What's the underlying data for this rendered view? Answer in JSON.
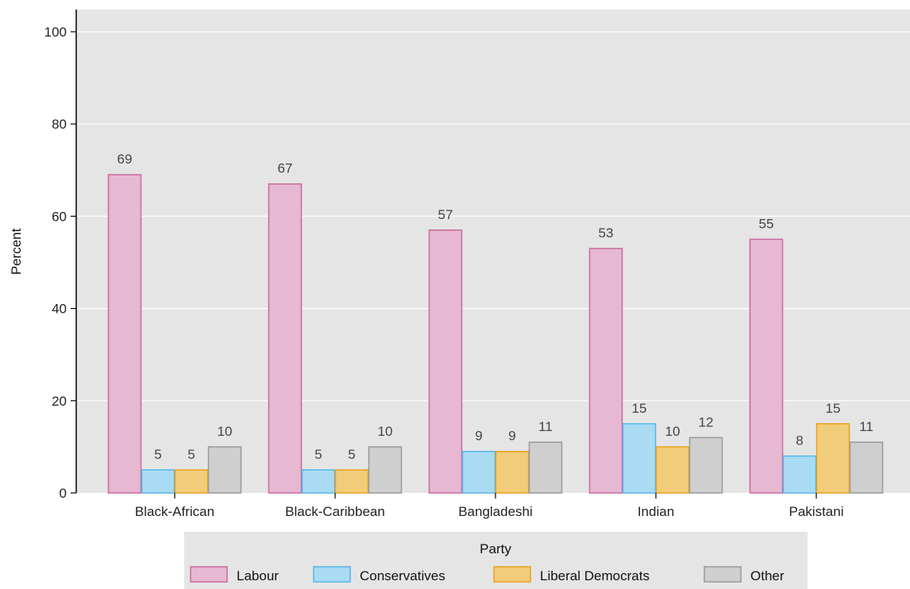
{
  "chart_data": {
    "type": "bar",
    "title": "",
    "xlabel": "",
    "ylabel": "Percent",
    "ylim": [
      0,
      100
    ],
    "yticks": [
      0,
      20,
      40,
      60,
      80,
      100
    ],
    "grid": true,
    "categories": [
      "Black-African",
      "Black-Caribbean",
      "Bangladeshi",
      "Indian",
      "Pakistani"
    ],
    "series": [
      {
        "name": "Labour",
        "values": [
          69,
          67,
          57,
          53,
          55
        ],
        "fill": "#e6b8d2",
        "stroke": "#c8699b"
      },
      {
        "name": "Conservatives",
        "values": [
          5,
          5,
          9,
          15,
          8
        ],
        "fill": "#a9dcf2",
        "stroke": "#56b4e9"
      },
      {
        "name": "Liberal Democrats",
        "values": [
          5,
          5,
          9,
          10,
          15
        ],
        "fill": "#f2cc7a",
        "stroke": "#e8a21a"
      },
      {
        "name": "Other",
        "values": [
          10,
          10,
          11,
          12,
          11
        ],
        "fill": "#cfcfcf",
        "stroke": "#999999"
      }
    ],
    "legend": {
      "title": "Party",
      "position": "bottom"
    },
    "colors": {
      "panel_background": "#e5e5e5",
      "gridline": "#ffffff"
    }
  }
}
